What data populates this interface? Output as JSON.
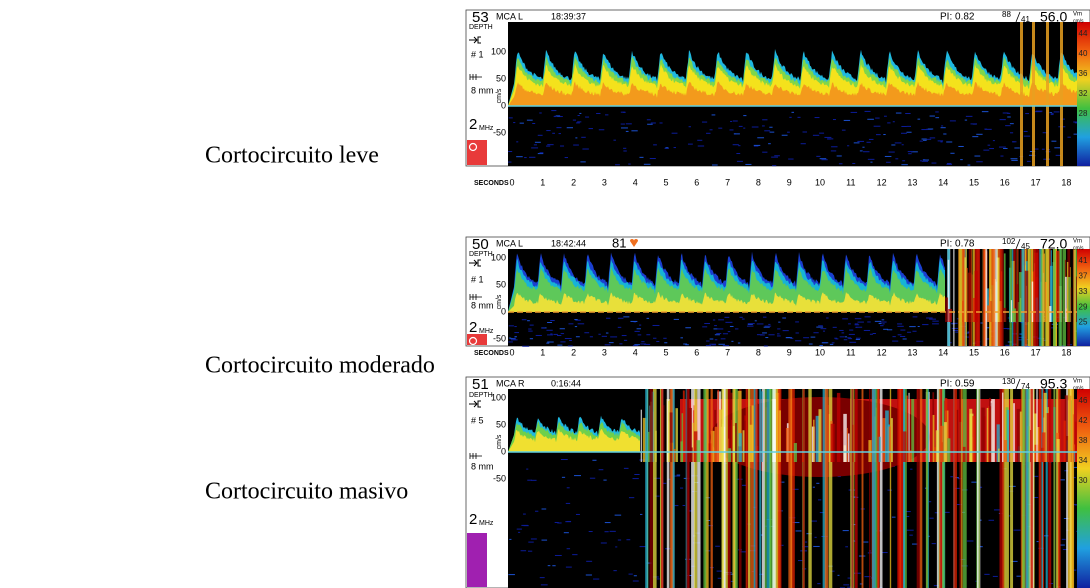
{
  "panels": [
    {
      "label": "Cortocircuito leve",
      "depth": "53",
      "vessel": "MCA L",
      "time": "18:39:37",
      "pi": "PI: 0.82",
      "velocity_peak": "88",
      "velocity_min": "41",
      "mean": "56.0",
      "unit_top": "Vm",
      "unit_bottom": "cm/s",
      "depth_label": "DEPTH",
      "gate": "# 1",
      "sample": "8 mm",
      "freq": "2",
      "freq_unit": "MHz",
      "yticks": [
        "100",
        "50",
        "0",
        "-50"
      ],
      "y_unit": "cm/s",
      "scale": [
        "44",
        "40",
        "36",
        "32",
        "28"
      ],
      "seconds_label": "SECONDS",
      "seconds": [
        "0",
        "1",
        "2",
        "3",
        "4",
        "5",
        "6",
        "7",
        "8",
        "9",
        "10",
        "11",
        "12",
        "13",
        "14",
        "15",
        "16",
        "17",
        "18"
      ]
    },
    {
      "label": "Cortocircuito moderado",
      "depth": "50",
      "vessel": "MCA L",
      "time": "18:42:44",
      "heart_rate": "81",
      "pi": "PI: 0.78",
      "velocity_peak": "102",
      "velocity_min": "45",
      "mean": "72.0",
      "unit_top": "Vm",
      "unit_bottom": "cm/s",
      "depth_label": "DEPTH",
      "gate": "# 1",
      "sample": "8 mm",
      "freq": "2",
      "freq_unit": "MHz",
      "yticks": [
        "100",
        "50",
        "0",
        "-50"
      ],
      "y_unit": "cm/s",
      "scale": [
        "41",
        "37",
        "33",
        "29",
        "25"
      ],
      "seconds_label": "SECONDS",
      "seconds": [
        "0",
        "1",
        "2",
        "3",
        "4",
        "5",
        "6",
        "7",
        "8",
        "9",
        "10",
        "11",
        "12",
        "13",
        "14",
        "15",
        "16",
        "17",
        "18"
      ]
    },
    {
      "label": "Cortocircuito masivo",
      "depth": "51",
      "vessel": "MCA R",
      "time": "0:16:44",
      "pi": "PI: 0.59",
      "velocity_peak": "130",
      "velocity_min": "74",
      "mean": "95.3",
      "unit_top": "Vm",
      "unit_bottom": "cm/s",
      "depth_label": "DEPTH",
      "gate": "# 5",
      "sample": "8 mm",
      "freq": "2",
      "freq_unit": "MHz",
      "yticks": [
        "100",
        "50",
        "0",
        "-50"
      ],
      "y_unit": "cm/s",
      "scale": [
        "46",
        "42",
        "38",
        "34",
        "30"
      ]
    }
  ]
}
